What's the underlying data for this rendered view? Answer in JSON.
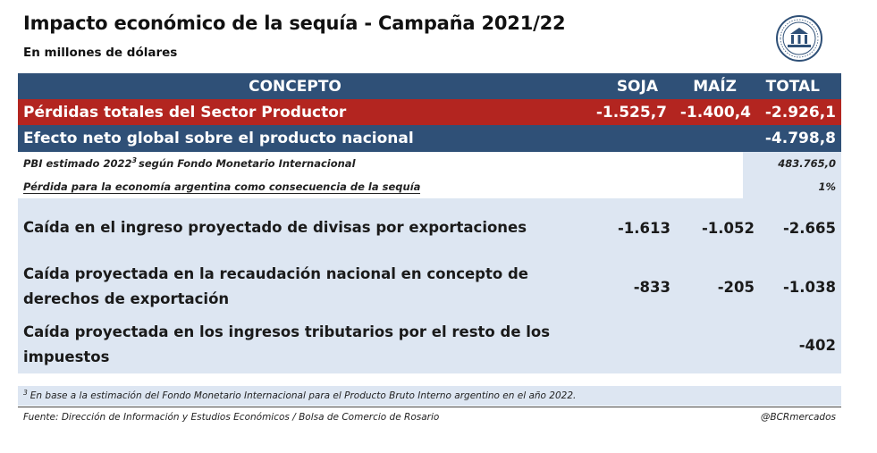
{
  "title": "Impacto económico de la sequía - Campaña 2021/22",
  "subtitle": "En millones de dólares",
  "logo": {
    "icon": "bcr-seal-icon",
    "color": "#2f5077"
  },
  "colors": {
    "header": "#2f5077",
    "loss": "#b32520",
    "light": "#dde6f2"
  },
  "header": {
    "concept": "CONCEPTO",
    "soja": "SOJA",
    "maiz": "MAÍZ",
    "total": "TOTAL"
  },
  "losses": {
    "concept": "Pérdidas totales del Sector Productor",
    "soja": "-1.525,7",
    "maiz": "-1.400,4",
    "total": "-2.926,1"
  },
  "net_effect": {
    "concept": "Efecto neto global sobre el producto nacional",
    "total": "-4.798,8"
  },
  "pbi": {
    "concept_a": "PBI estimado 2022",
    "sup": "3",
    "concept_b": " según Fondo Monetario Internacional",
    "total": "483.765,0"
  },
  "loss_pct": {
    "concept": "Pérdida para la economía argentina como consecuencia de la sequía",
    "total": "1%"
  },
  "rows": [
    {
      "concept": "Caída en el ingreso proyectado de divisas por exportaciones",
      "soja": "-1.613",
      "maiz": "-1.052",
      "total": "-2.665"
    },
    {
      "concept": "Caída proyectada en la recaudación nacional en concepto de derechos de exportación",
      "soja": "-833",
      "maiz": "-205",
      "total": "-1.038"
    },
    {
      "concept": "Caída proyectada en los ingresos tributarios por el resto de los impuestos",
      "soja": "",
      "maiz": "",
      "total": "-402"
    }
  ],
  "footnote": {
    "sup": "3",
    "text": "En base a la estimación del Fondo Monetario Internacional para el Producto Bruto Interno argentino en el año 2022."
  },
  "source": "Fuente: Dirección de Información y Estudios Económicos / Bolsa de Comercio de Rosario",
  "handle": "@BCRmercados"
}
